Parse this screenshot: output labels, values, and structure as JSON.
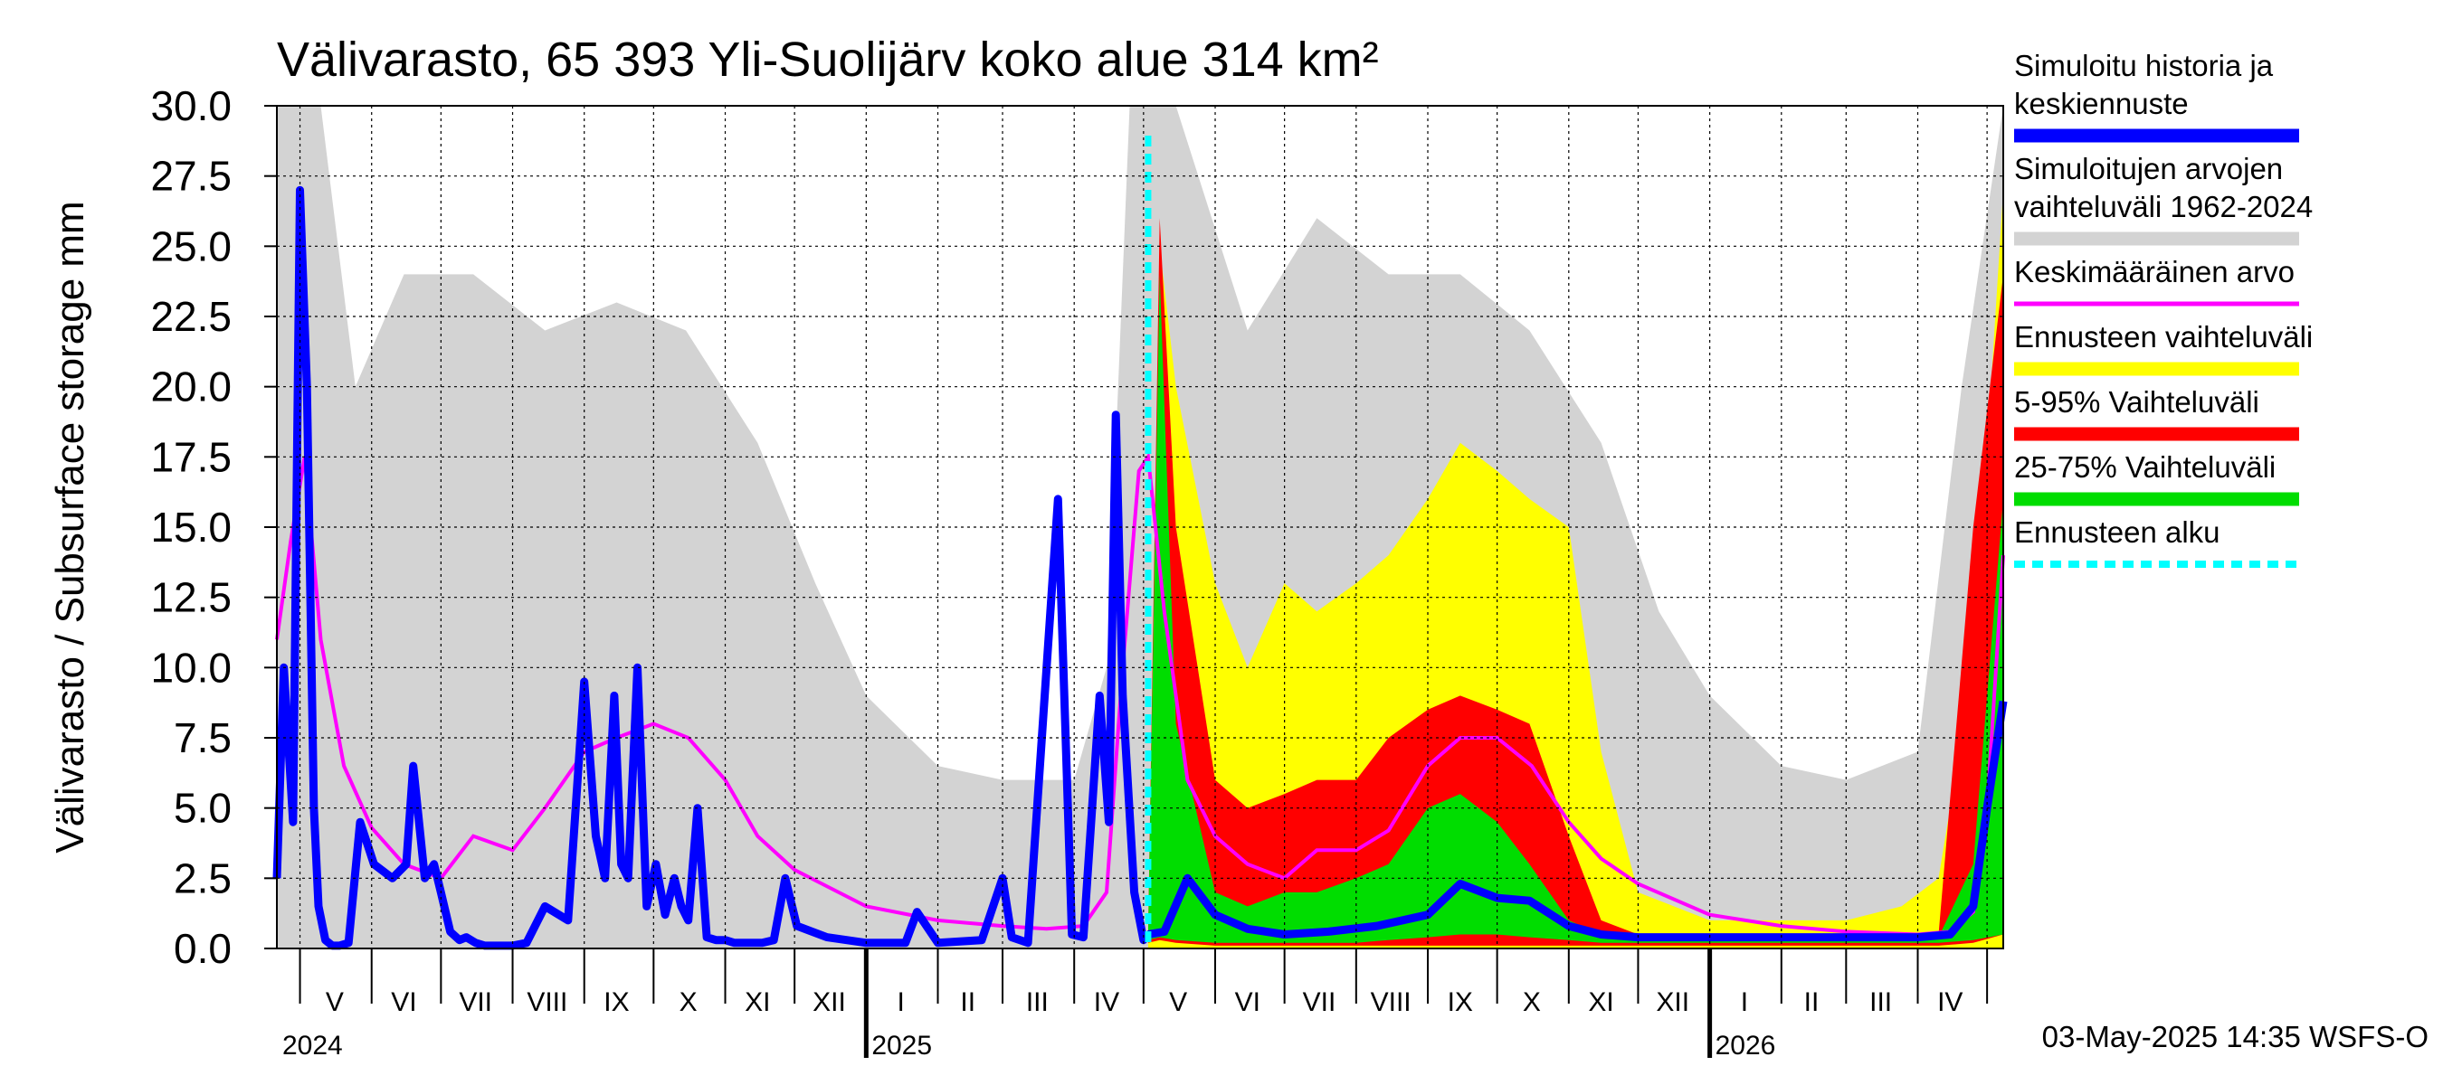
{
  "chart_data": {
    "type": "area",
    "title": "Välivarasto, 65 393 Yli-Suolijärv koko alue 314 km²",
    "ylabel": "Välivarasto / Subsurface storage  mm",
    "ylim": [
      0,
      30
    ],
    "yticks": [
      "0.0",
      "2.5",
      "5.0",
      "7.5",
      "10.0",
      "12.5",
      "15.0",
      "17.5",
      "20.0",
      "22.5",
      "25.0",
      "27.5",
      "30.0"
    ],
    "x_range": [
      "2024-04-21",
      "2026-05-08"
    ],
    "month_labels": [
      {
        "label": "V",
        "date": "2024-05-16"
      },
      {
        "label": "VI",
        "date": "2024-06-15"
      },
      {
        "label": "VII",
        "date": "2024-07-16"
      },
      {
        "label": "VIII",
        "date": "2024-08-16"
      },
      {
        "label": "IX",
        "date": "2024-09-15"
      },
      {
        "label": "X",
        "date": "2024-10-16"
      },
      {
        "label": "XI",
        "date": "2024-11-15"
      },
      {
        "label": "XII",
        "date": "2024-12-16"
      },
      {
        "label": "I",
        "date": "2025-01-16"
      },
      {
        "label": "II",
        "date": "2025-02-14"
      },
      {
        "label": "III",
        "date": "2025-03-16"
      },
      {
        "label": "IV",
        "date": "2025-04-15"
      },
      {
        "label": "V",
        "date": "2025-05-16"
      },
      {
        "label": "VI",
        "date": "2025-06-15"
      },
      {
        "label": "VII",
        "date": "2025-07-16"
      },
      {
        "label": "VIII",
        "date": "2025-08-16"
      },
      {
        "label": "IX",
        "date": "2025-09-15"
      },
      {
        "label": "X",
        "date": "2025-10-16"
      },
      {
        "label": "XI",
        "date": "2025-11-15"
      },
      {
        "label": "XII",
        "date": "2025-12-16"
      },
      {
        "label": "I",
        "date": "2026-01-16"
      },
      {
        "label": "II",
        "date": "2026-02-14"
      },
      {
        "label": "III",
        "date": "2026-03-16"
      },
      {
        "label": "IV",
        "date": "2026-04-15"
      }
    ],
    "year_labels": [
      {
        "label": "2024",
        "date": "2024-04-21"
      },
      {
        "label": "2025",
        "date": "2025-01-01"
      },
      {
        "label": "2026",
        "date": "2026-01-01"
      }
    ],
    "forecast_start": "2025-05-03",
    "grid": true,
    "legend_position": "right",
    "footer": "03-May-2025 14:35 WSFS-O",
    "colors": {
      "history": "#0000ff",
      "hist_range": "#d3d3d3",
      "mean": "#ff00ff",
      "forecast_range": "#ffff00",
      "p5_95": "#ff0000",
      "p25_75": "#00dd00",
      "forecast_start": "#00ffff"
    },
    "legend": [
      {
        "key": "history",
        "lines": [
          "Simuloitu historia ja",
          "keskiennuste"
        ]
      },
      {
        "key": "hist_range",
        "lines": [
          "Simuloitujen arvojen",
          "vaihteluväli 1962-2024"
        ]
      },
      {
        "key": "mean",
        "lines": [
          "Keskimääräinen arvo"
        ]
      },
      {
        "key": "forecast_range",
        "lines": [
          "Ennusteen vaihteluväli"
        ]
      },
      {
        "key": "p5_95",
        "lines": [
          "5-95% Vaihteluväli"
        ]
      },
      {
        "key": "p25_75",
        "lines": [
          "25-75% Vaihteluväli"
        ]
      },
      {
        "key": "forecast_start",
        "lines": [
          "Ennusteen alku"
        ]
      }
    ],
    "series": {
      "history": {
        "x": [
          "2024-04-21",
          "2024-04-24",
          "2024-04-28",
          "2024-05-01",
          "2024-05-04",
          "2024-05-07",
          "2024-05-09",
          "2024-05-12",
          "2024-05-15",
          "2024-05-18",
          "2024-05-22",
          "2024-05-27",
          "2024-06-02",
          "2024-06-10",
          "2024-06-16",
          "2024-06-19",
          "2024-06-24",
          "2024-06-28",
          "2024-07-01",
          "2024-07-05",
          "2024-07-09",
          "2024-07-12",
          "2024-07-16",
          "2024-07-20",
          "2024-07-25",
          "2024-08-01",
          "2024-08-07",
          "2024-08-15",
          "2024-08-25",
          "2024-09-01",
          "2024-09-06",
          "2024-09-10",
          "2024-09-14",
          "2024-09-17",
          "2024-09-20",
          "2024-09-24",
          "2024-09-28",
          "2024-10-02",
          "2024-10-06",
          "2024-10-10",
          "2024-10-13",
          "2024-10-16",
          "2024-10-20",
          "2024-10-24",
          "2024-10-28",
          "2024-11-01",
          "2024-11-05",
          "2024-11-09",
          "2024-11-13",
          "2024-11-17",
          "2024-11-22",
          "2024-11-27",
          "2024-12-02",
          "2024-12-15",
          "2025-01-01",
          "2025-01-12",
          "2025-01-18",
          "2025-01-23",
          "2025-02-01",
          "2025-02-20",
          "2025-03-01",
          "2025-03-05",
          "2025-03-12",
          "2025-03-25",
          "2025-03-31",
          "2025-04-05",
          "2025-04-12",
          "2025-04-16",
          "2025-04-19",
          "2025-04-22",
          "2025-04-27",
          "2025-05-01",
          "2025-05-03"
        ],
        "y": [
          2.5,
          10,
          4.5,
          27,
          20,
          5,
          1.5,
          0.3,
          0.1,
          0.1,
          0.2,
          4.5,
          3,
          2.5,
          3,
          6.5,
          2.5,
          3,
          2,
          0.6,
          0.3,
          0.4,
          0.2,
          0.1,
          0.1,
          0.1,
          0.2,
          1.5,
          1,
          9.5,
          4,
          2.5,
          9,
          3,
          2.5,
          10,
          1.5,
          3,
          1.2,
          2.5,
          1.5,
          1,
          5,
          0.4,
          0.3,
          0.3,
          0.2,
          0.2,
          0.2,
          0.2,
          0.3,
          2.5,
          0.8,
          0.4,
          0.2,
          0.2,
          0.2,
          1.3,
          0.2,
          0.3,
          2.5,
          0.4,
          0.2,
          16,
          0.5,
          0.4,
          9,
          4.5,
          19,
          9,
          2,
          0.3,
          0.5
        ]
      },
      "history_forecast": {
        "x": [
          "2025-05-03",
          "2025-05-10",
          "2025-05-20",
          "2025-06-01",
          "2025-06-15",
          "2025-07-01",
          "2025-07-20",
          "2025-08-10",
          "2025-09-01",
          "2025-09-15",
          "2025-10-01",
          "2025-10-15",
          "2025-11-01",
          "2025-11-15",
          "2025-12-01",
          "2026-01-01",
          "2026-02-01",
          "2026-03-01",
          "2026-04-01",
          "2026-04-15",
          "2026-04-25",
          "2026-05-01",
          "2026-05-08"
        ],
        "y": [
          0.5,
          0.6,
          2.5,
          1.2,
          0.7,
          0.5,
          0.6,
          0.8,
          1.2,
          2.3,
          1.8,
          1.7,
          0.8,
          0.5,
          0.4,
          0.4,
          0.4,
          0.4,
          0.4,
          0.5,
          1.5,
          5,
          8.8
        ]
      },
      "mean": {
        "x": [
          "2024-04-21",
          "2024-04-27",
          "2024-05-03",
          "2024-05-10",
          "2024-05-20",
          "2024-06-01",
          "2024-06-15",
          "2024-07-01",
          "2024-07-15",
          "2024-08-01",
          "2024-08-15",
          "2024-09-01",
          "2024-09-15",
          "2024-10-01",
          "2024-10-16",
          "2024-11-01",
          "2024-11-15",
          "2024-12-01",
          "2025-01-01",
          "2025-02-01",
          "2025-03-01",
          "2025-03-20",
          "2025-04-05",
          "2025-04-15",
          "2025-04-22",
          "2025-04-29",
          "2025-05-03",
          "2025-05-10",
          "2025-05-20",
          "2025-06-01",
          "2025-06-15",
          "2025-07-01",
          "2025-07-15",
          "2025-08-01",
          "2025-08-15",
          "2025-09-01",
          "2025-09-15",
          "2025-10-01",
          "2025-10-16",
          "2025-11-01",
          "2025-11-15",
          "2025-12-01",
          "2026-01-01",
          "2026-02-01",
          "2026-03-01",
          "2026-04-01",
          "2026-04-15",
          "2026-04-25",
          "2026-05-01",
          "2026-05-08"
        ],
        "y": [
          11,
          14.5,
          17.5,
          11,
          6.5,
          4.3,
          3,
          2.5,
          4,
          3.5,
          5,
          7,
          7.5,
          8,
          7.5,
          6,
          4,
          2.8,
          1.5,
          1,
          0.8,
          0.7,
          0.8,
          2,
          10,
          17,
          17.5,
          12,
          6,
          4,
          3,
          2.5,
          3.5,
          3.5,
          4.2,
          6.5,
          7.5,
          7.5,
          6.5,
          4.5,
          3.2,
          2.3,
          1.2,
          0.8,
          0.6,
          0.5,
          0.6,
          1.3,
          5,
          14
        ]
      },
      "hist_range_upper": {
        "x": [
          "2024-04-21",
          "2024-05-03",
          "2024-05-10",
          "2024-05-25",
          "2024-06-15",
          "2024-07-15",
          "2024-08-15",
          "2024-09-15",
          "2024-10-15",
          "2024-11-15",
          "2024-12-10",
          "2025-01-01",
          "2025-02-01",
          "2025-03-01",
          "2025-04-01",
          "2025-04-15",
          "2025-04-25",
          "2025-05-03",
          "2025-05-15",
          "2025-06-15",
          "2025-07-15",
          "2025-08-15",
          "2025-09-15",
          "2025-10-15",
          "2025-11-15",
          "2025-12-10",
          "2026-01-01",
          "2026-02-01",
          "2026-03-01",
          "2026-04-01",
          "2026-04-20",
          "2026-05-08"
        ],
        "y": [
          30,
          30,
          30,
          20,
          24,
          24,
          22,
          23,
          22,
          18,
          13,
          9,
          6.5,
          6,
          6,
          10,
          30,
          30,
          30,
          22,
          26,
          24,
          24,
          22,
          18,
          12,
          9,
          6.5,
          6,
          7,
          20,
          30
        ]
      },
      "forecast_range_upper": {
        "x": [
          "2025-05-03",
          "2025-05-08",
          "2025-05-15",
          "2025-06-01",
          "2025-06-15",
          "2025-07-01",
          "2025-07-15",
          "2025-08-01",
          "2025-08-15",
          "2025-09-01",
          "2025-09-15",
          "2025-10-01",
          "2025-10-15",
          "2025-11-01",
          "2025-11-15",
          "2025-12-01",
          "2026-01-01",
          "2026-02-01",
          "2026-03-01",
          "2026-03-25",
          "2026-04-10",
          "2026-04-25",
          "2026-05-08"
        ],
        "y": [
          0.5,
          25,
          20,
          13,
          10,
          13,
          12,
          13,
          14,
          16,
          18,
          17,
          16,
          15,
          7,
          2,
          1,
          1,
          1,
          1.5,
          2.5,
          10,
          27
        ]
      },
      "p5_95": {
        "x": [
          "2025-05-03",
          "2025-05-08",
          "2025-05-15",
          "2025-06-01",
          "2025-06-15",
          "2025-07-01",
          "2025-07-15",
          "2025-08-01",
          "2025-08-15",
          "2025-09-01",
          "2025-09-15",
          "2025-10-01",
          "2025-10-15",
          "2025-11-01",
          "2025-11-15",
          "2025-12-01",
          "2026-01-01",
          "2026-03-01",
          "2026-04-10",
          "2026-04-25",
          "2026-05-08"
        ],
        "upper": [
          0.5,
          26,
          15,
          6,
          5,
          5.5,
          6,
          6,
          7.5,
          8.5,
          9,
          8.5,
          8,
          4,
          1,
          0.5,
          0.4,
          0.4,
          0.5,
          15,
          24
        ],
        "lower": [
          0.2,
          0.3,
          0.2,
          0.1,
          0.1,
          0.1,
          0.1,
          0.1,
          0.1,
          0.1,
          0.1,
          0.1,
          0.1,
          0.1,
          0.1,
          0.1,
          0.1,
          0.1,
          0.1,
          0.2,
          0.5
        ]
      },
      "p25_75": {
        "x": [
          "2025-05-03",
          "2025-05-08",
          "2025-05-15",
          "2025-06-01",
          "2025-06-15",
          "2025-07-01",
          "2025-07-15",
          "2025-08-01",
          "2025-08-15",
          "2025-09-01",
          "2025-09-15",
          "2025-10-01",
          "2025-10-15",
          "2025-11-01",
          "2025-11-15",
          "2025-12-01",
          "2026-01-01",
          "2026-03-01",
          "2026-04-10",
          "2026-04-25",
          "2026-05-08"
        ],
        "upper": [
          0.5,
          24,
          8,
          2,
          1.5,
          2,
          2,
          2.5,
          3,
          5,
          5.5,
          4.5,
          3,
          1,
          0.5,
          0.4,
          0.3,
          0.3,
          0.4,
          3,
          16
        ],
        "lower": [
          0.3,
          0.4,
          0.3,
          0.2,
          0.2,
          0.2,
          0.2,
          0.2,
          0.3,
          0.4,
          0.5,
          0.5,
          0.4,
          0.3,
          0.2,
          0.2,
          0.2,
          0.2,
          0.2,
          0.3,
          0.5
        ]
      }
    }
  }
}
